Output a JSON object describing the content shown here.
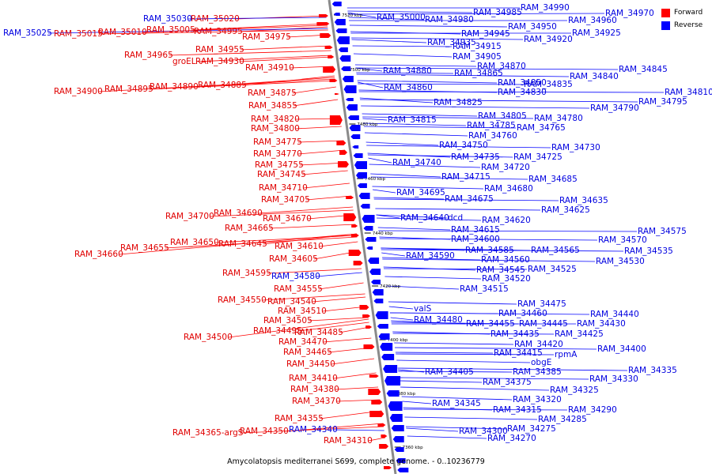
{
  "caption": "Amycolatopsis mediterranei S699, complete genome. - 0..10236779",
  "legend": [
    {
      "label": "Forward",
      "color": "#ff0000"
    },
    {
      "label": "Reverse",
      "color": "#0000ff"
    }
  ],
  "colors": {
    "forward": "#ff0000",
    "reverse": "#0000ff",
    "backbone": "#808080"
  },
  "scale_marks": [
    "7520 kbp",
    "7500 kbp",
    "7480 kbp",
    "7460 kbp",
    "7440 kbp",
    "7420 kbp",
    "7400 kbp",
    "7380 kbp",
    "7360 kbp"
  ],
  "forward_genes": [
    "RAM_35020",
    "RAM_35005",
    "RAM_34995",
    "RAM_34975",
    "RAM_34955",
    "RAM_34930",
    "RAM_34910",
    "RAM_34885",
    "RAM_34875",
    "RAM_34855",
    "RAM_34820",
    "RAM_34800",
    "RAM_34775",
    "RAM_34770",
    "RAM_34755",
    "RAM_34745",
    "RAM_34710",
    "RAM_34705",
    "RAM_34690",
    "RAM_34670",
    "RAM_34665",
    "RAM_34645",
    "RAM_34610",
    "RAM_34605",
    "RAM_34555",
    "RAM_34540",
    "RAM_34510",
    "RAM_34505",
    "RAM_34485",
    "RAM_34470",
    "RAM_34465",
    "RAM_34450",
    "RAM_34410",
    "RAM_34380",
    "RAM_34370",
    "RAM_34355",
    "RAM_34350",
    "RAM_34310",
    "RAM_35030",
    "RAM_35025",
    "RAM_35015",
    "RAM_35010",
    "RAM_34965",
    "groEL",
    "RAM_34900",
    "RAM_34895",
    "RAM_34890",
    "RAM_34700",
    "RAM_34660",
    "RAM_34655",
    "RAM_34650",
    "RAM_34595",
    "RAM_34580",
    "RAM_34550",
    "RAM_34500",
    "RAM_34495",
    "RAM_34365-argS",
    "RAM_34340"
  ],
  "reverse_genes": [
    "RAM_35000",
    "RAM_34980",
    "RAM_34985",
    "RAM_34990",
    "RAM_34970",
    "RAM_34960",
    "RAM_34950",
    "RAM_34945",
    "RAM_34925",
    "RAM_34920",
    "RAM_34935",
    "RAM_34915",
    "RAM_34905",
    "RAM_34870",
    "RAM_34880",
    "RAM_34865",
    "RAM_34845",
    "RAM_34840",
    "RAM_34860",
    "RAM_34850",
    "RAM_34835",
    "RAM_34830",
    "RAM_34810",
    "RAM_34825",
    "RAM_34795",
    "RAM_34790",
    "RAM_34805",
    "RAM_34780",
    "RAM_34815",
    "RAM_34785",
    "RAM_34765",
    "RAM_34760",
    "RAM_34750",
    "RAM_34730",
    "RAM_34735",
    "RAM_34725",
    "RAM_34740",
    "RAM_34720",
    "RAM_34715",
    "RAM_34685",
    "RAM_34695",
    "RAM_34680",
    "RAM_34675",
    "RAM_34635",
    "RAM_34625",
    "RAM_34640",
    "dcd",
    "RAM_34620",
    "RAM_34615",
    "RAM_34575",
    "RAM_34600",
    "RAM_34570",
    "RAM_34585",
    "RAM_34565",
    "RAM_34535",
    "RAM_34590",
    "RAM_34560",
    "RAM_34530",
    "RAM_34545",
    "RAM_34525",
    "RAM_34520",
    "RAM_34515",
    "RAM_34475",
    "valS",
    "RAM_34460",
    "RAM_34440",
    "RAM_34480",
    "RAM_34455",
    "RAM_34445",
    "RAM_34430",
    "RAM_34435",
    "RAM_34425",
    "RAM_34420",
    "RAM_34400",
    "RAM_34415",
    "rpmA",
    "obgE",
    "RAM_34335",
    "RAM_34405",
    "RAM_34385",
    "RAM_34330",
    "RAM_34375",
    "RAM_34325",
    "RAM_34320",
    "RAM_34345",
    "RAM_34290",
    "RAM_34315",
    "RAM_34285",
    "RAM_34275",
    "RAM_34300",
    "RAM_34270"
  ]
}
